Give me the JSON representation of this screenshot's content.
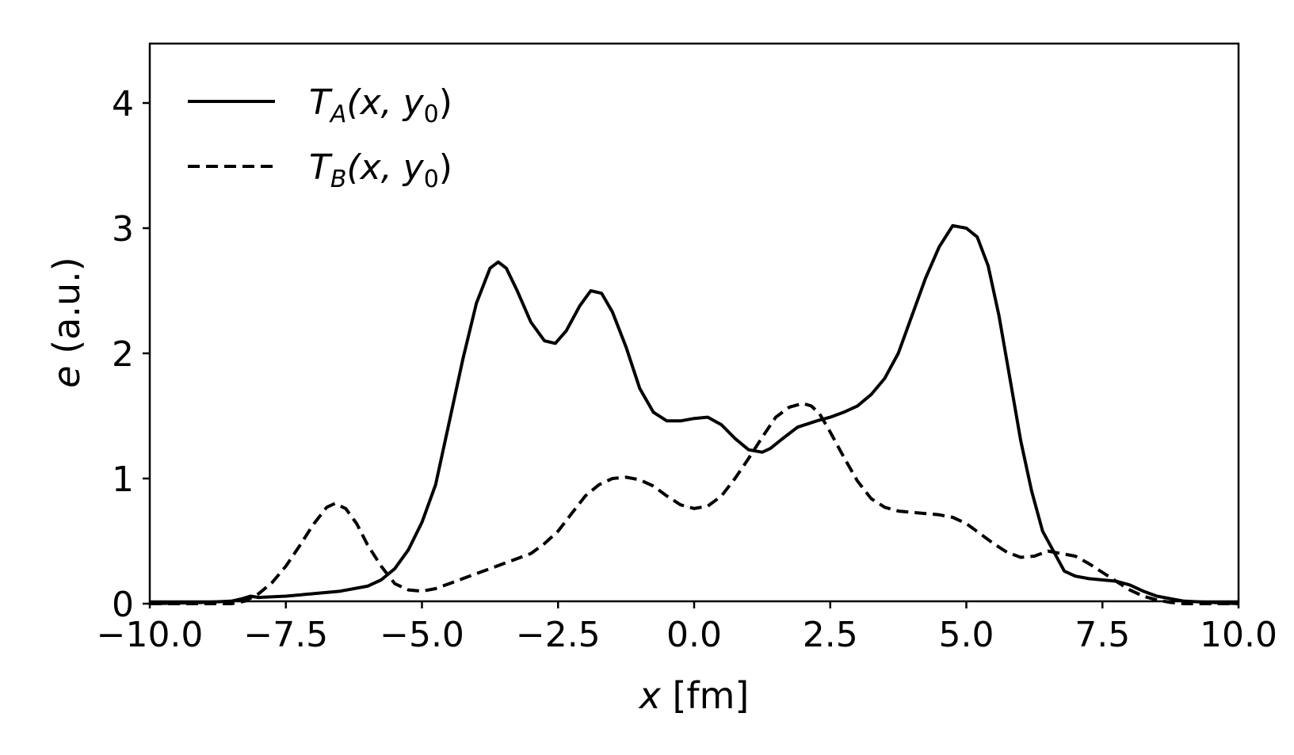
{
  "chart_data": {
    "type": "line",
    "xlabel": {
      "var": "x",
      "unit": "[fm]"
    },
    "ylabel": {
      "var": "e",
      "unit": "(a.u.)"
    },
    "xlim": [
      -10,
      10
    ],
    "ylim": [
      0,
      4.5
    ],
    "xticks": [
      -10,
      -7.5,
      -5,
      -2.5,
      0,
      2.5,
      5,
      7.5,
      10
    ],
    "xtick_labels": [
      "−10.0",
      "−7.5",
      "−5.0",
      "−2.5",
      "0.0",
      "2.5",
      "5.0",
      "7.5",
      "10.0"
    ],
    "yticks": [
      0,
      1,
      2,
      3,
      4
    ],
    "ytick_labels": [
      "0",
      "1",
      "2",
      "3",
      "4"
    ],
    "grid": false,
    "legend_position": "top-left",
    "series": [
      {
        "name": "T_A(x, y_0)",
        "legend": {
          "base": "T",
          "sub": "A",
          "args": "(x, y",
          "sub2": "0",
          "close": ")"
        },
        "style": "solid",
        "color": "#000000",
        "x": [
          -10,
          -9,
          -8.5,
          -8.3,
          -8.15,
          -8.0,
          -7.5,
          -7.0,
          -6.5,
          -6.0,
          -5.75,
          -5.5,
          -5.25,
          -5.0,
          -4.75,
          -4.5,
          -4.25,
          -4.0,
          -3.75,
          -3.6,
          -3.45,
          -3.25,
          -3.0,
          -2.75,
          -2.55,
          -2.35,
          -2.1,
          -1.9,
          -1.7,
          -1.5,
          -1.25,
          -1.0,
          -0.75,
          -0.5,
          -0.25,
          0.0,
          0.25,
          0.5,
          0.75,
          1.0,
          1.25,
          1.4,
          1.6,
          1.9,
          2.25,
          2.5,
          2.75,
          3.0,
          3.25,
          3.5,
          3.75,
          4.0,
          4.25,
          4.5,
          4.75,
          5.0,
          5.2,
          5.4,
          5.6,
          5.8,
          6.0,
          6.2,
          6.4,
          6.6,
          6.8,
          7.0,
          7.25,
          7.5,
          7.75,
          8.0,
          8.25,
          8.5,
          8.75,
          9.0,
          9.5,
          10.0
        ],
        "y": [
          0.0,
          0.01,
          0.02,
          0.04,
          0.06,
          0.05,
          0.06,
          0.08,
          0.1,
          0.14,
          0.19,
          0.28,
          0.43,
          0.65,
          0.95,
          1.45,
          1.95,
          2.4,
          2.68,
          2.73,
          2.68,
          2.5,
          2.25,
          2.1,
          2.08,
          2.18,
          2.38,
          2.5,
          2.48,
          2.33,
          2.05,
          1.72,
          1.53,
          1.46,
          1.46,
          1.48,
          1.49,
          1.43,
          1.32,
          1.23,
          1.21,
          1.24,
          1.31,
          1.41,
          1.46,
          1.49,
          1.53,
          1.58,
          1.67,
          1.8,
          2.0,
          2.3,
          2.6,
          2.85,
          3.02,
          3.0,
          2.93,
          2.7,
          2.3,
          1.8,
          1.3,
          0.9,
          0.58,
          0.42,
          0.26,
          0.22,
          0.2,
          0.19,
          0.18,
          0.15,
          0.1,
          0.06,
          0.04,
          0.02,
          0.01,
          0.0
        ]
      },
      {
        "name": "T_B(x, y_0)",
        "legend": {
          "base": "T",
          "sub": "B",
          "args": "(x, y",
          "sub2": "0",
          "close": ")"
        },
        "style": "dashed",
        "color": "#000000",
        "x": [
          -10,
          -9,
          -8.5,
          -8.25,
          -8.0,
          -7.75,
          -7.5,
          -7.25,
          -7.0,
          -6.75,
          -6.6,
          -6.4,
          -6.2,
          -6.0,
          -5.75,
          -5.5,
          -5.25,
          -5.0,
          -4.75,
          -4.5,
          -4.25,
          -4.0,
          -3.75,
          -3.5,
          -3.25,
          -3.0,
          -2.75,
          -2.5,
          -2.25,
          -2.0,
          -1.75,
          -1.5,
          -1.25,
          -1.0,
          -0.75,
          -0.5,
          -0.25,
          0.0,
          0.25,
          0.5,
          0.75,
          1.0,
          1.25,
          1.5,
          1.75,
          2.0,
          2.15,
          2.3,
          2.5,
          2.75,
          3.0,
          3.25,
          3.5,
          3.75,
          4.0,
          4.25,
          4.5,
          4.75,
          5.0,
          5.25,
          5.5,
          5.75,
          6.0,
          6.25,
          6.5,
          6.75,
          7.0,
          7.25,
          7.5,
          7.75,
          8.0,
          8.25,
          8.5,
          8.75,
          9.0,
          9.5,
          10.0
        ],
        "y": [
          0.0,
          0.0,
          0.0,
          0.02,
          0.08,
          0.17,
          0.3,
          0.46,
          0.63,
          0.77,
          0.8,
          0.76,
          0.64,
          0.47,
          0.3,
          0.16,
          0.11,
          0.1,
          0.12,
          0.16,
          0.2,
          0.24,
          0.28,
          0.32,
          0.36,
          0.4,
          0.48,
          0.58,
          0.72,
          0.86,
          0.95,
          1.0,
          1.01,
          0.99,
          0.94,
          0.86,
          0.79,
          0.76,
          0.78,
          0.86,
          1.0,
          1.16,
          1.33,
          1.49,
          1.57,
          1.6,
          1.58,
          1.52,
          1.37,
          1.17,
          0.98,
          0.84,
          0.77,
          0.74,
          0.73,
          0.72,
          0.71,
          0.69,
          0.64,
          0.56,
          0.48,
          0.41,
          0.37,
          0.38,
          0.42,
          0.4,
          0.38,
          0.32,
          0.25,
          0.18,
          0.11,
          0.06,
          0.03,
          0.01,
          0.0,
          0.0,
          0.0
        ]
      }
    ]
  }
}
